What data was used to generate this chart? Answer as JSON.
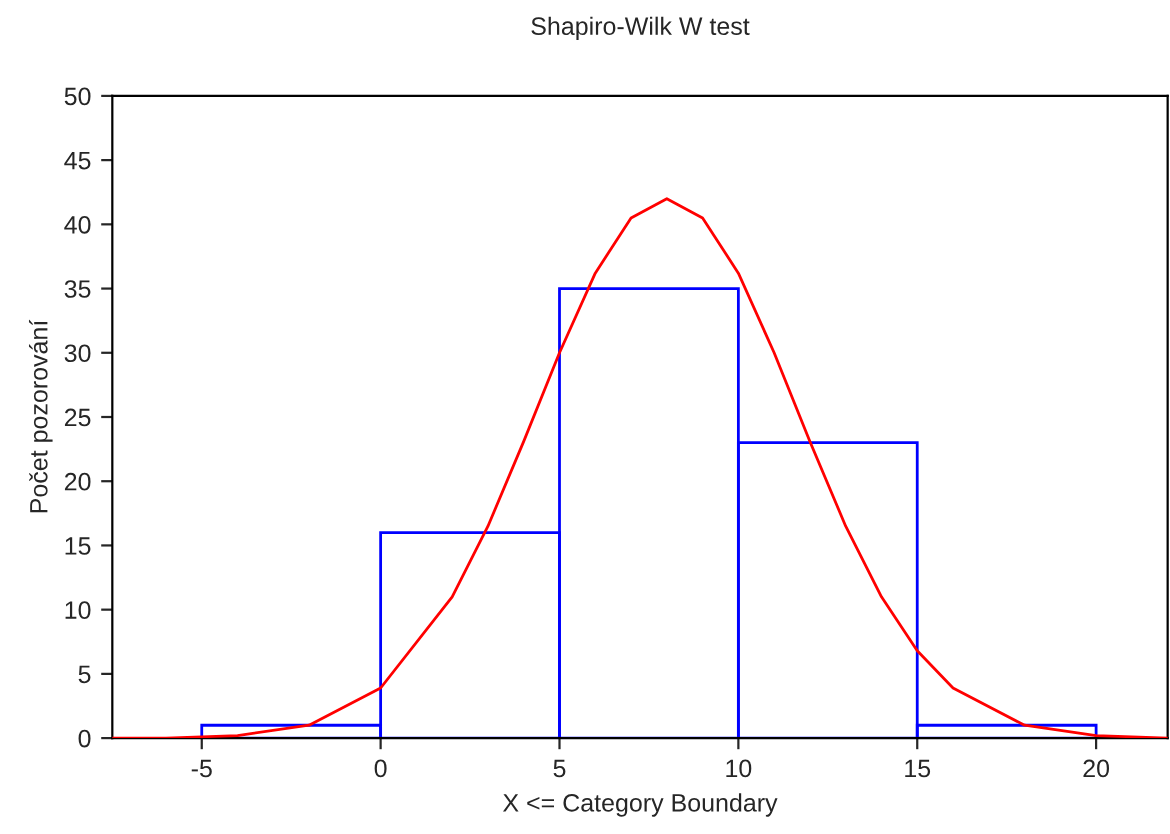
{
  "chart_data": {
    "type": "histogram",
    "title": "Shapiro-Wilk W test",
    "xlabel": "X <= Category Boundary",
    "ylabel": "Počet pozorování",
    "series": [
      {
        "type": "histogram",
        "color": "#0000ff",
        "bins": [
          -5,
          0,
          5,
          10,
          15,
          20
        ],
        "values": [
          1,
          16,
          35,
          23,
          1
        ]
      },
      {
        "type": "line",
        "color": "#ff0000",
        "x": [
          -7.5,
          -6,
          -4,
          -2,
          0,
          2,
          3,
          4,
          5,
          6,
          7,
          8,
          9,
          10,
          11,
          12,
          13,
          14,
          15,
          16,
          18,
          20,
          22
        ],
        "values": [
          0,
          0,
          0.2,
          1.0,
          3.9,
          11.0,
          16.5,
          23.1,
          30,
          36.2,
          40.5,
          42,
          40.5,
          36.2,
          30,
          23.1,
          16.5,
          11.0,
          6.8,
          3.9,
          1.0,
          0.2,
          0
        ]
      }
    ],
    "xlim": [
      -7.5,
      22
    ],
    "xticks": [
      -5,
      0,
      5,
      10,
      15,
      20
    ],
    "ylim": [
      0,
      50
    ],
    "yticks": [
      0,
      5,
      10,
      15,
      20,
      25,
      30,
      35,
      40,
      45,
      50
    ],
    "grid": false,
    "legend": false
  }
}
